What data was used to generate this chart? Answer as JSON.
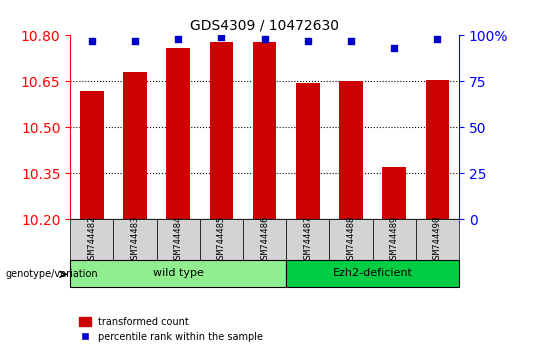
{
  "title": "GDS4309 / 10472630",
  "samples": [
    "GSM744482",
    "GSM744483",
    "GSM744484",
    "GSM744485",
    "GSM744486",
    "GSM744487",
    "GSM744488",
    "GSM744489",
    "GSM744490"
  ],
  "bar_values": [
    10.62,
    10.68,
    10.76,
    10.78,
    10.78,
    10.645,
    10.65,
    10.37,
    10.655
  ],
  "percentile_values": [
    97,
    97,
    98,
    99,
    98,
    97,
    97,
    93,
    98
  ],
  "ylim_left": [
    10.2,
    10.8
  ],
  "ylim_right": [
    0,
    100
  ],
  "yticks_left": [
    10.2,
    10.35,
    10.5,
    10.65,
    10.8
  ],
  "yticks_right": [
    0,
    25,
    50,
    75,
    100
  ],
  "bar_color": "#cc0000",
  "point_color": "#0000cc",
  "grid_color": "#000000",
  "wild_type_samples": [
    "GSM744482",
    "GSM744483",
    "GSM744484",
    "GSM744485",
    "GSM744486"
  ],
  "ezh2_samples": [
    "GSM744487",
    "GSM744488",
    "GSM744489",
    "GSM744490"
  ],
  "wild_type_label": "wild type",
  "ezh2_label": "Ezh2-deficient",
  "genotype_label": "genotype/variation",
  "legend_bar_label": "transformed count",
  "legend_point_label": "percentile rank within the sample",
  "wild_type_color": "#90ee90",
  "ezh2_color": "#00cc44",
  "sample_bg_color": "#d3d3d3",
  "bar_width": 0.55
}
